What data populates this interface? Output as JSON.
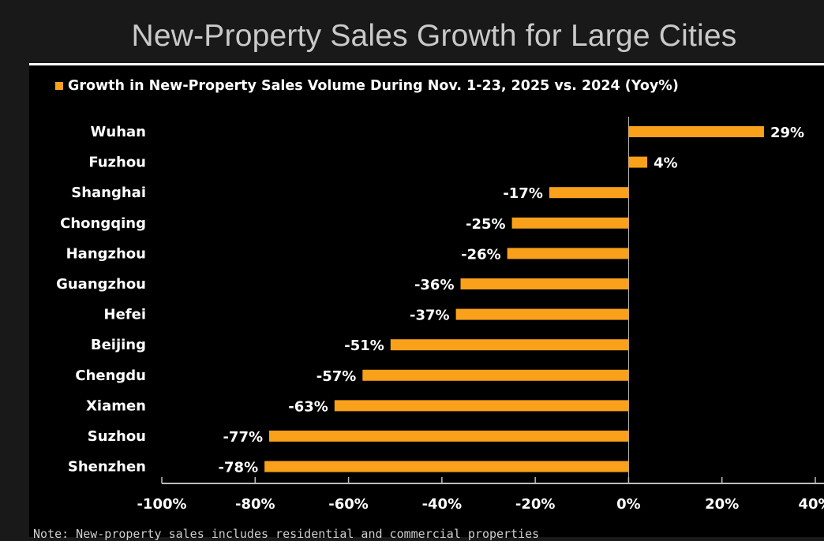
{
  "title": "New-Property Sales Growth for Large Cities",
  "note": "Note: New-property sales includes residential and commercial properties",
  "colors": {
    "bar": "#f9a11b",
    "background": "#000000",
    "outer_background": "#191919",
    "text": "#ffffff",
    "axis": "#bdbdbd"
  },
  "chart_data": {
    "type": "bar",
    "orientation": "horizontal",
    "title": "New-Property Sales Growth for Large Cities",
    "legend": {
      "placement": "top-left",
      "entries": [
        "Growth in New-Property Sales Volume During Nov. 1-23, 2025 vs. 2024 (Yoy%)"
      ]
    },
    "categories": [
      "Wuhan",
      "Fuzhou",
      "Shanghai",
      "Chongqing",
      "Hangzhou",
      "Guangzhou",
      "Hefei",
      "Beijing",
      "Chengdu",
      "Xiamen",
      "Suzhou",
      "Shenzhen"
    ],
    "series": [
      {
        "name": "Growth in New-Property Sales Volume During Nov. 1-23, 2025 vs. 2024 (Yoy%)",
        "values": [
          29,
          4,
          -17,
          -25,
          -26,
          -36,
          -37,
          -51,
          -57,
          -63,
          -77,
          -78
        ],
        "labels": [
          "29%",
          "4%",
          "-17%",
          "-25%",
          "-26%",
          "-36%",
          "-37%",
          "-51%",
          "-57%",
          "-63%",
          "-77%",
          "-78%"
        ]
      }
    ],
    "xlabel": "",
    "ylabel": "",
    "xlim": [
      -100,
      40
    ],
    "xticks": [
      -100,
      -80,
      -60,
      -40,
      -20,
      0,
      20,
      40
    ],
    "xtick_labels": [
      "-100%",
      "-80%",
      "-60%",
      "-40%",
      "-20%",
      "0%",
      "20%",
      "40%"
    ],
    "grid": false,
    "unit": "%"
  }
}
